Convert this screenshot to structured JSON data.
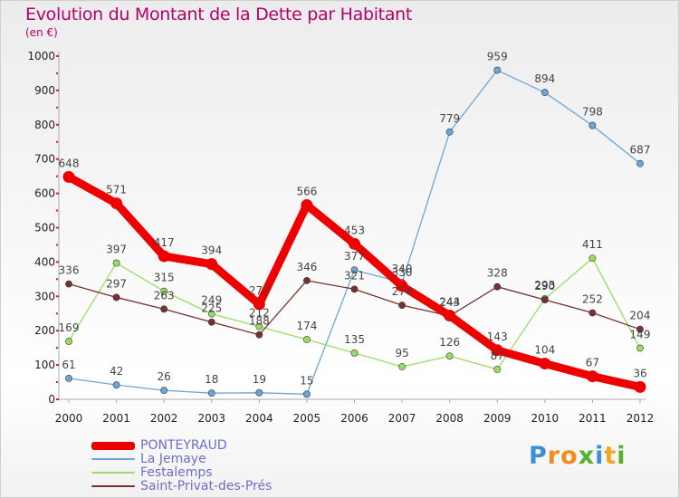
{
  "header": {
    "title": "Evolution du Montant de la Dette par Habitant",
    "subtitle": "(en €)"
  },
  "brand": {
    "letters": [
      "P",
      "r",
      "o",
      "x",
      "i",
      "t",
      "i"
    ],
    "colors": [
      "#3c8fd6",
      "#f28c1e",
      "#f28c1e",
      "#58b030",
      "#3c8fd6",
      "#f2a51e",
      "#58b030"
    ]
  },
  "chart_data": {
    "type": "line",
    "title": "Evolution du Montant de la Dette par Habitant",
    "subtitle": "(en €)",
    "x": [
      "2000",
      "2001",
      "2002",
      "2003",
      "2004",
      "2005",
      "2006",
      "2007",
      "2008",
      "2009",
      "2010",
      "2011",
      "2012"
    ],
    "y_ticks": [
      "0",
      "100",
      "200",
      "300",
      "400",
      "500",
      "600",
      "700",
      "800",
      "900",
      "1000"
    ],
    "ylim": [
      0,
      1000
    ],
    "grid": false,
    "legend_position": "bottom-left",
    "series": [
      {
        "name": "PONTEYRAUD",
        "color": "#ee0000",
        "values": [
          648,
          571,
          417,
          394,
          277,
          566,
          453,
          330,
          244,
          143,
          104,
          67,
          36
        ],
        "labels": [
          "648",
          "571",
          "417",
          "394",
          "277",
          "566",
          "453",
          "330",
          "244",
          "143",
          "104",
          "67",
          "36"
        ]
      },
      {
        "name": "La Jemaye",
        "color": "#6aa6d9",
        "values": [
          61,
          42,
          26,
          18,
          19,
          15,
          377,
          340,
          779,
          959,
          894,
          798,
          687
        ],
        "labels": [
          "61",
          "42",
          "26",
          "18",
          "19",
          "15",
          "377",
          "340",
          "779",
          "959",
          "894",
          "798",
          "687"
        ]
      },
      {
        "name": "Festalemps",
        "color": "#99dd66",
        "values": [
          169,
          397,
          315,
          249,
          212,
          174,
          135,
          95,
          126,
          87,
          293,
          411,
          149
        ],
        "labels": [
          "169",
          "397",
          "315",
          "249",
          "212",
          "174",
          "135",
          "95",
          "126",
          "87",
          "293",
          "411",
          "149"
        ]
      },
      {
        "name": "Saint-Privat-des-Prés",
        "color": "#7a3030",
        "values": [
          336,
          297,
          263,
          225,
          188,
          346,
          321,
          274,
          243,
          328,
          290,
          252,
          204
        ],
        "labels": [
          "336",
          "297",
          "263",
          "225",
          "188",
          "346",
          "321",
          "274",
          "243",
          "328",
          "290",
          "252",
          "204"
        ]
      }
    ]
  }
}
